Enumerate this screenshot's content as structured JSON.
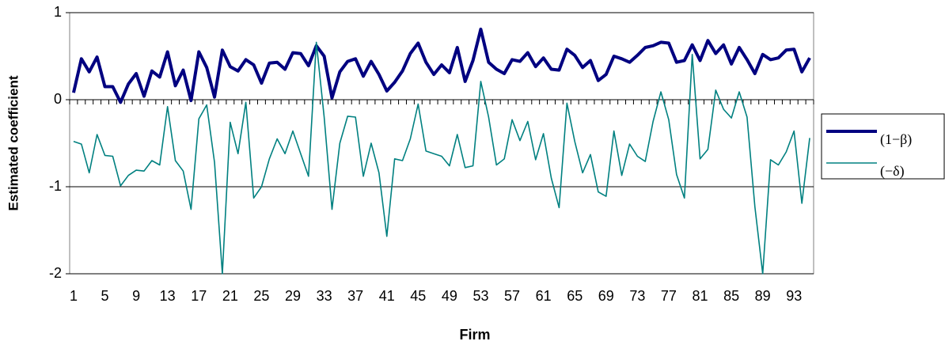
{
  "chart_data": {
    "type": "line",
    "x_label": "Firm",
    "y_label": "Estimated coefficient",
    "categories": [
      "1",
      null,
      null,
      null,
      "5",
      null,
      null,
      null,
      "9",
      null,
      null,
      null,
      "13",
      null,
      null,
      null,
      "17",
      null,
      null,
      null,
      "21",
      null,
      null,
      null,
      "25",
      null,
      null,
      null,
      "29",
      null,
      null,
      null,
      "33",
      null,
      null,
      null,
      "37",
      null,
      null,
      null,
      "41",
      null,
      null,
      null,
      "45",
      null,
      null,
      null,
      "49",
      null,
      null,
      null,
      "53",
      null,
      null,
      null,
      "57",
      null,
      null,
      null,
      "61",
      null,
      null,
      null,
      "65",
      null,
      null,
      null,
      "69",
      null,
      null,
      null,
      "73",
      null,
      null,
      null,
      "77",
      null,
      null,
      null,
      "81",
      null,
      null,
      null,
      "85",
      null,
      null,
      null,
      "89",
      null,
      null,
      null,
      "93",
      null,
      null
    ],
    "series": [
      {
        "name": "(1−β)",
        "color": "#000080",
        "width": 4,
        "values": [
          0.08,
          0.47,
          0.32,
          0.49,
          0.15,
          0.15,
          -0.03,
          0.18,
          0.3,
          0.04,
          0.33,
          0.26,
          0.55,
          0.16,
          0.34,
          -0.01,
          0.55,
          0.37,
          0.03,
          0.57,
          0.38,
          0.33,
          0.46,
          0.4,
          0.19,
          0.42,
          0.43,
          0.35,
          0.54,
          0.53,
          0.39,
          0.62,
          0.5,
          0.02,
          0.32,
          0.44,
          0.47,
          0.27,
          0.44,
          0.29,
          0.1,
          0.2,
          0.33,
          0.53,
          0.65,
          0.43,
          0.29,
          0.4,
          0.31,
          0.6,
          0.21,
          0.45,
          0.81,
          0.43,
          0.35,
          0.3,
          0.46,
          0.44,
          0.54,
          0.38,
          0.48,
          0.35,
          0.34,
          0.58,
          0.51,
          0.37,
          0.45,
          0.22,
          0.29,
          0.5,
          0.47,
          0.43,
          0.51,
          0.6,
          0.62,
          0.66,
          0.65,
          0.43,
          0.45,
          0.63,
          0.45,
          0.68,
          0.53,
          0.63,
          0.41,
          0.6,
          0.46,
          0.3,
          0.52,
          0.46,
          0.48,
          0.57,
          0.58,
          0.32,
          0.48
        ]
      },
      {
        "name": "(−δ)",
        "color": "#008080",
        "width": 1.6,
        "values": [
          -0.48,
          -0.51,
          -0.84,
          -0.4,
          -0.64,
          -0.65,
          -0.99,
          -0.87,
          -0.81,
          -0.82,
          -0.7,
          -0.75,
          -0.08,
          -0.7,
          -0.82,
          -1.26,
          -0.22,
          -0.06,
          -0.72,
          -2.0,
          -0.26,
          -0.62,
          -0.03,
          -1.13,
          -1.0,
          -0.68,
          -0.45,
          -0.62,
          -0.36,
          -0.62,
          -0.88,
          0.66,
          -0.2,
          -1.26,
          -0.5,
          -0.19,
          -0.2,
          -0.88,
          -0.5,
          -0.84,
          -1.57,
          -0.68,
          -0.7,
          -0.45,
          -0.05,
          -0.59,
          -0.62,
          -0.65,
          -0.76,
          -0.4,
          -0.78,
          -0.76,
          0.21,
          -0.2,
          -0.75,
          -0.68,
          -0.23,
          -0.47,
          -0.25,
          -0.69,
          -0.39,
          -0.9,
          -1.24,
          -0.04,
          -0.48,
          -0.84,
          -0.63,
          -1.06,
          -1.11,
          -0.36,
          -0.87,
          -0.51,
          -0.65,
          -0.71,
          -0.25,
          0.09,
          -0.23,
          -0.86,
          -1.13,
          0.52,
          -0.68,
          -0.57,
          0.11,
          -0.11,
          -0.21,
          0.09,
          -0.2,
          -1.23,
          -2.0,
          -0.69,
          -0.75,
          -0.6,
          -0.36,
          -1.19,
          -0.44
        ]
      }
    ],
    "ylim": [
      -2,
      1
    ],
    "yticks": [
      1,
      0,
      -1,
      -2
    ],
    "grid": true,
    "legend": "right"
  }
}
